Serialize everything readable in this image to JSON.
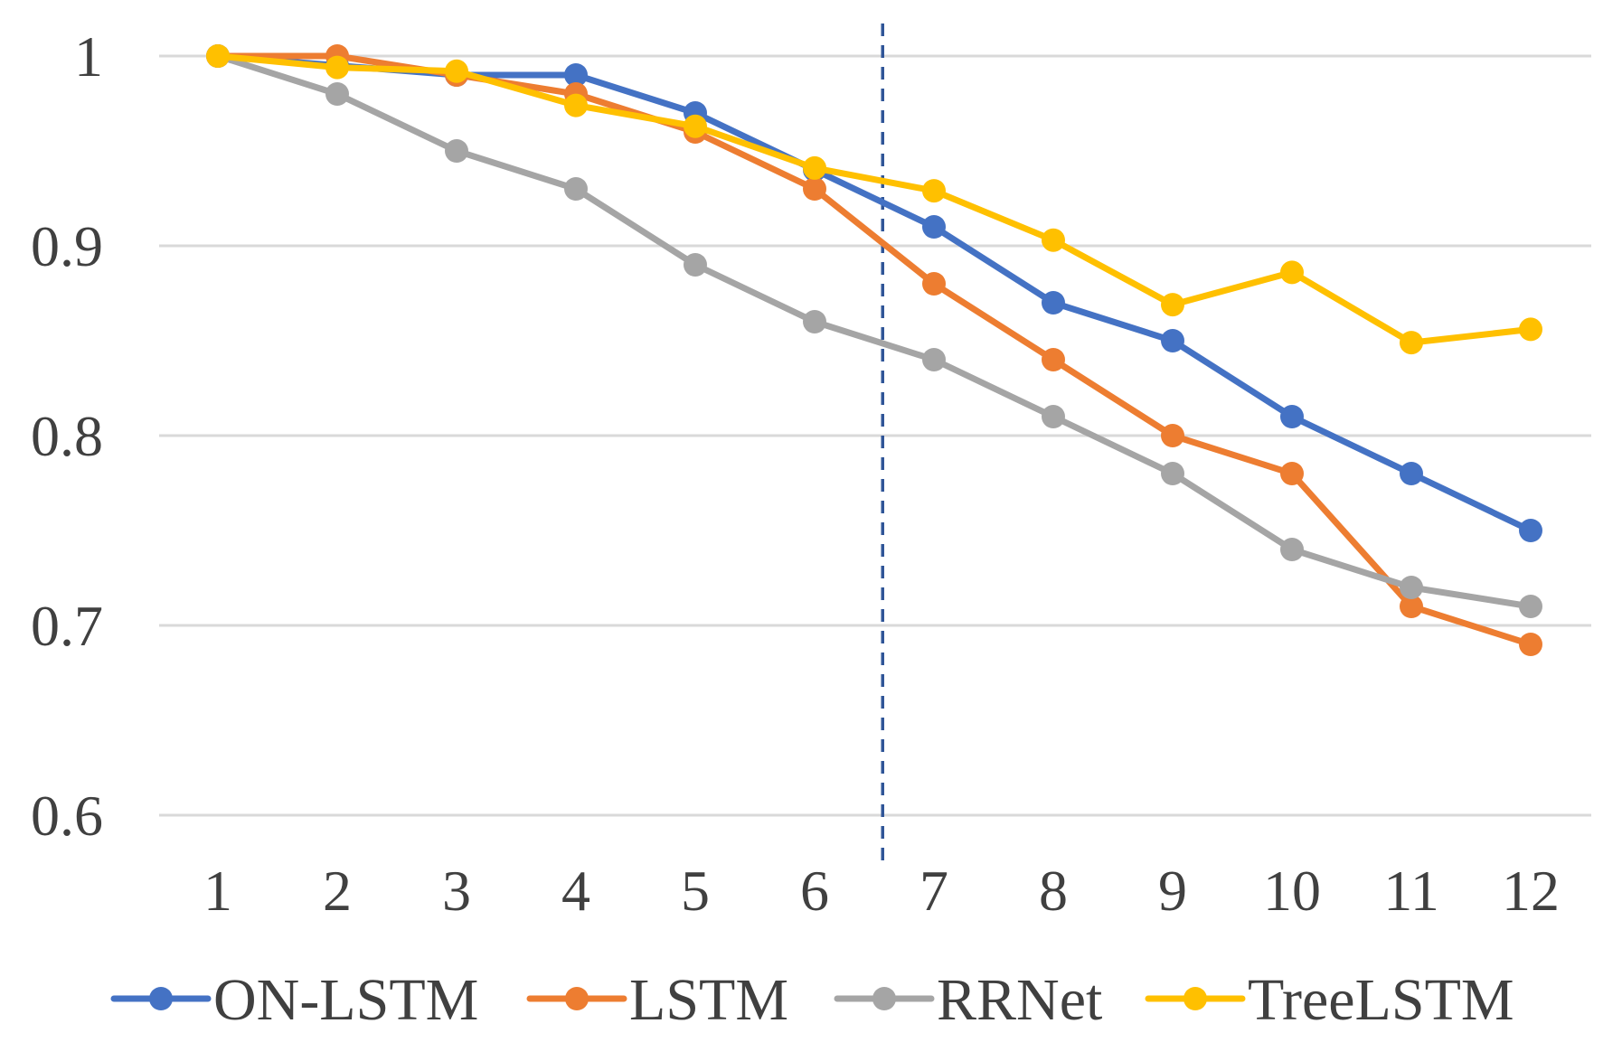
{
  "chart_data": {
    "type": "line",
    "title": "",
    "xlabel": "",
    "ylabel": "",
    "x": [
      1,
      2,
      3,
      4,
      5,
      6,
      7,
      8,
      9,
      10,
      11,
      12
    ],
    "x_tick_labels": [
      "1",
      "2",
      "3",
      "4",
      "5",
      "6",
      "7",
      "8",
      "9",
      "10",
      "11",
      "12"
    ],
    "ylim": [
      0.6,
      1.0
    ],
    "y_ticks": [
      0.6,
      0.7,
      0.8,
      0.9,
      1.0
    ],
    "y_tick_labels": [
      "0.6",
      "0.7",
      "0.8",
      "0.9",
      "1"
    ],
    "grid": "horizontal",
    "legend_position": "bottom",
    "vertical_marker_x": 6.57,
    "series": [
      {
        "name": "ON-LSTM",
        "color": "#4472c4",
        "values": [
          1.0,
          0.995,
          0.99,
          0.99,
          0.97,
          0.94,
          0.91,
          0.87,
          0.85,
          0.81,
          0.78,
          0.75
        ]
      },
      {
        "name": "LSTM",
        "color": "#ed7d31",
        "values": [
          1.0,
          1.0,
          0.99,
          0.98,
          0.96,
          0.93,
          0.88,
          0.84,
          0.8,
          0.78,
          0.71,
          0.69
        ]
      },
      {
        "name": "RRNet",
        "color": "#a5a5a5",
        "values": [
          1.0,
          0.98,
          0.95,
          0.93,
          0.89,
          0.86,
          0.84,
          0.81,
          0.78,
          0.74,
          0.72,
          0.71
        ]
      },
      {
        "name": "TreeLSTM",
        "color": "#ffc000",
        "values": [
          1.0,
          0.994,
          0.992,
          0.974,
          0.963,
          0.941,
          0.929,
          0.903,
          0.869,
          0.886,
          0.849,
          0.856
        ]
      }
    ]
  }
}
